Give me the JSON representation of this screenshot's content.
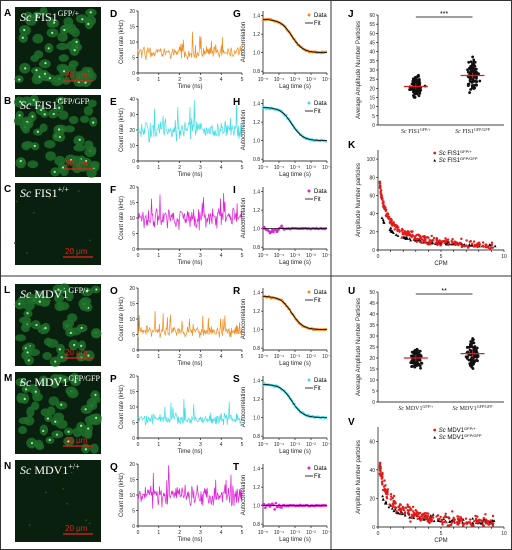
{
  "section_top": {
    "images": [
      {
        "letter": "A",
        "name": "Sc",
        "gene": "FIS1",
        "sup": "GFP/+",
        "scale": "20 μm",
        "density": "high"
      },
      {
        "letter": "B",
        "name": "Sc",
        "gene": "FIS1",
        "sup": "GFP/GFP",
        "scale": "20 μm",
        "density": "high"
      },
      {
        "letter": "C",
        "name": "Sc",
        "gene": "FIS1",
        "sup": "+/+",
        "scale": "20 μm",
        "density": "none"
      }
    ],
    "traces": [
      {
        "letter": "D",
        "color": "#f28c1e",
        "level": 6.5,
        "ylabel": "Count rate (kHz)",
        "xlabel": "Time (ns)",
        "yticks": [
          0,
          5,
          10,
          15,
          20
        ],
        "xticks": [
          0,
          1,
          2,
          3,
          4,
          5
        ],
        "ymax": 20
      },
      {
        "letter": "E",
        "color": "#3fdde6",
        "level": 20,
        "ylabel": "Count rate (kHz)",
        "xlabel": "Time (ns)",
        "yticks": [
          0,
          10,
          20,
          30,
          40
        ],
        "xticks": [
          0,
          1,
          2,
          3,
          4,
          5
        ],
        "ymax": 40
      },
      {
        "letter": "F",
        "color": "#e020d8",
        "level": 10,
        "ylabel": "Count rate (kHz)",
        "xlabel": "Time (ns)",
        "yticks": [
          0,
          5,
          10,
          15,
          20
        ],
        "xticks": [
          0,
          1,
          2,
          3,
          4,
          5
        ],
        "ymax": 20
      }
    ],
    "acf": [
      {
        "letter": "G",
        "color": "#f28c1e",
        "kind": "decay",
        "ylabel": "Autocorrelation",
        "xlabel": "Lag time (s)",
        "yticks": [
          "1.4",
          "1.2",
          "1.0",
          "0.8"
        ],
        "xticks": [
          "10⁻⁵",
          "10⁻⁴",
          "10⁻³",
          "10⁻²",
          "10⁻¹"
        ],
        "legend": [
          "Data",
          "Fit"
        ]
      },
      {
        "letter": "H",
        "color": "#3fdde6",
        "kind": "decay",
        "ylabel": "Autocorrelation",
        "xlabel": "Lag time (s)",
        "yticks": [
          "1.4",
          "1.2",
          "1.0",
          "0.8"
        ],
        "xticks": [
          "10⁻⁵",
          "10⁻⁴",
          "10⁻³",
          "10⁻²",
          "10⁻¹"
        ],
        "legend": [
          "Data",
          "Fit"
        ]
      },
      {
        "letter": "I",
        "color": "#e020d8",
        "kind": "flat",
        "ylabel": "Autocorrelation",
        "xlabel": "Lag time (s)",
        "yticks": [
          "1.4",
          "1.2",
          "1.0",
          "0.8"
        ],
        "xticks": [
          "10⁻⁵",
          "10⁻⁴",
          "10⁻³",
          "10⁻²",
          "10⁻¹"
        ],
        "legend": [
          "Data",
          "Fit"
        ]
      }
    ],
    "scatter": {
      "letter": "J",
      "ylabel": "Average Amplitude Number Particles",
      "yticks": [
        0,
        5,
        10,
        15,
        20,
        25,
        30,
        35,
        40,
        45,
        50,
        55,
        60
      ],
      "ymax": 60,
      "significance": "***",
      "groups": [
        {
          "label": "Sc FIS1",
          "sup": "GFP/+",
          "mean": 21,
          "spread": 7
        },
        {
          "label": "Sc FIS1",
          "sup": "GFP/GFP",
          "mean": 27,
          "spread": 9
        }
      ]
    },
    "cpm": {
      "letter": "K",
      "ylabel": "Amplitude Number particles",
      "xlabel": "CPM",
      "yticks": [
        0,
        20,
        40,
        60,
        80,
        100
      ],
      "xticks": [
        0,
        1,
        2,
        3,
        4,
        5,
        6,
        7,
        8,
        9,
        10
      ],
      "legend": [
        "Sc FIS1",
        "Sc FIS1"
      ],
      "legend_sup": [
        "GFP/+",
        "GFP/GFP"
      ],
      "series_colors": [
        "#e31b1b",
        "#000000"
      ]
    }
  },
  "section_bottom": {
    "images": [
      {
        "letter": "L",
        "name": "Sc",
        "gene": "MDV1",
        "sup": "GFP/+",
        "scale": "20 μm",
        "density": "high"
      },
      {
        "letter": "M",
        "name": "Sc",
        "gene": "MDV1",
        "sup": "GFP/GFP",
        "scale": "20 μm",
        "density": "high"
      },
      {
        "letter": "N",
        "name": "Sc",
        "gene": "MDV1",
        "sup": "+/+",
        "scale": "20 μm",
        "density": "none"
      }
    ],
    "traces": [
      {
        "letter": "O",
        "color": "#f28c1e",
        "level": 6,
        "ylabel": "Count rate (kHz)",
        "xlabel": "Time (ns)",
        "yticks": [
          0,
          5,
          10,
          15,
          20
        ],
        "xticks": [
          0,
          1,
          2,
          3,
          4,
          5
        ],
        "ymax": 20
      },
      {
        "letter": "P",
        "color": "#3fdde6",
        "level": 6,
        "ylabel": "Count rate (kHz)",
        "xlabel": "Time (ns)",
        "yticks": [
          0,
          5,
          10,
          15,
          20
        ],
        "xticks": [
          0,
          1,
          2,
          3,
          4,
          5
        ],
        "ymax": 20
      },
      {
        "letter": "Q",
        "color": "#e020d8",
        "level": 10,
        "ylabel": "Count rate (kHz)",
        "xlabel": "Time (ns)",
        "yticks": [
          0,
          5,
          10,
          15,
          20
        ],
        "xticks": [
          0,
          1,
          2,
          3,
          4,
          5
        ],
        "ymax": 20
      }
    ],
    "acf": [
      {
        "letter": "R",
        "color": "#f28c1e",
        "kind": "decay",
        "ylabel": "Autocorrelation",
        "xlabel": "Lag time (s)",
        "yticks": [
          "1.4",
          "1.2",
          "1.0",
          "0.8"
        ],
        "xticks": [
          "10⁻⁵",
          "10⁻⁴",
          "10⁻³",
          "10⁻²",
          "10⁻¹"
        ],
        "legend": [
          "Data",
          "Fit"
        ]
      },
      {
        "letter": "S",
        "color": "#3fdde6",
        "kind": "decay",
        "ylabel": "Autocorrelation",
        "xlabel": "Lag time (s)",
        "yticks": [
          "1.4",
          "1.2",
          "1.0",
          "0.8"
        ],
        "xticks": [
          "10⁻⁵",
          "10⁻⁴",
          "10⁻³",
          "10⁻²",
          "10⁻¹"
        ],
        "legend": [
          "Data",
          "Fit"
        ]
      },
      {
        "letter": "T",
        "color": "#e020d8",
        "kind": "flat",
        "ylabel": "Autocorrelation",
        "xlabel": "Lag time (s)",
        "yticks": [
          "1.4",
          "1.2",
          "1.0",
          "0.8"
        ],
        "xticks": [
          "10⁻⁵",
          "10⁻⁴",
          "10⁻³",
          "10⁻²",
          "10⁻¹"
        ],
        "legend": [
          "Data",
          "Fit"
        ]
      }
    ],
    "scatter": {
      "letter": "U",
      "ylabel": "Average Amplitude Number Particles",
      "yticks": [
        0,
        5,
        10,
        15,
        20,
        25,
        30,
        35,
        40,
        45,
        50
      ],
      "ymax": 50,
      "significance": "**",
      "groups": [
        {
          "label": "Sc MDV1",
          "sup": "GFP/+",
          "mean": 20,
          "spread": 5
        },
        {
          "label": "Sc MDV1",
          "sup": "GFP/GFP",
          "mean": 22,
          "spread": 7
        }
      ]
    },
    "cpm": {
      "letter": "V",
      "ylabel": "Amplitude Number particles",
      "xlabel": "CPM",
      "yticks": [
        0,
        20,
        40,
        60
      ],
      "xticks": [
        0,
        1,
        2,
        3,
        4,
        5,
        6,
        7,
        8,
        9,
        10
      ],
      "legend": [
        "Sc MDV1",
        "Sc MDV1"
      ],
      "legend_sup": [
        "GFP/+",
        "GFP/GFP"
      ],
      "series_colors": [
        "#e31b1b",
        "#000000"
      ]
    }
  }
}
